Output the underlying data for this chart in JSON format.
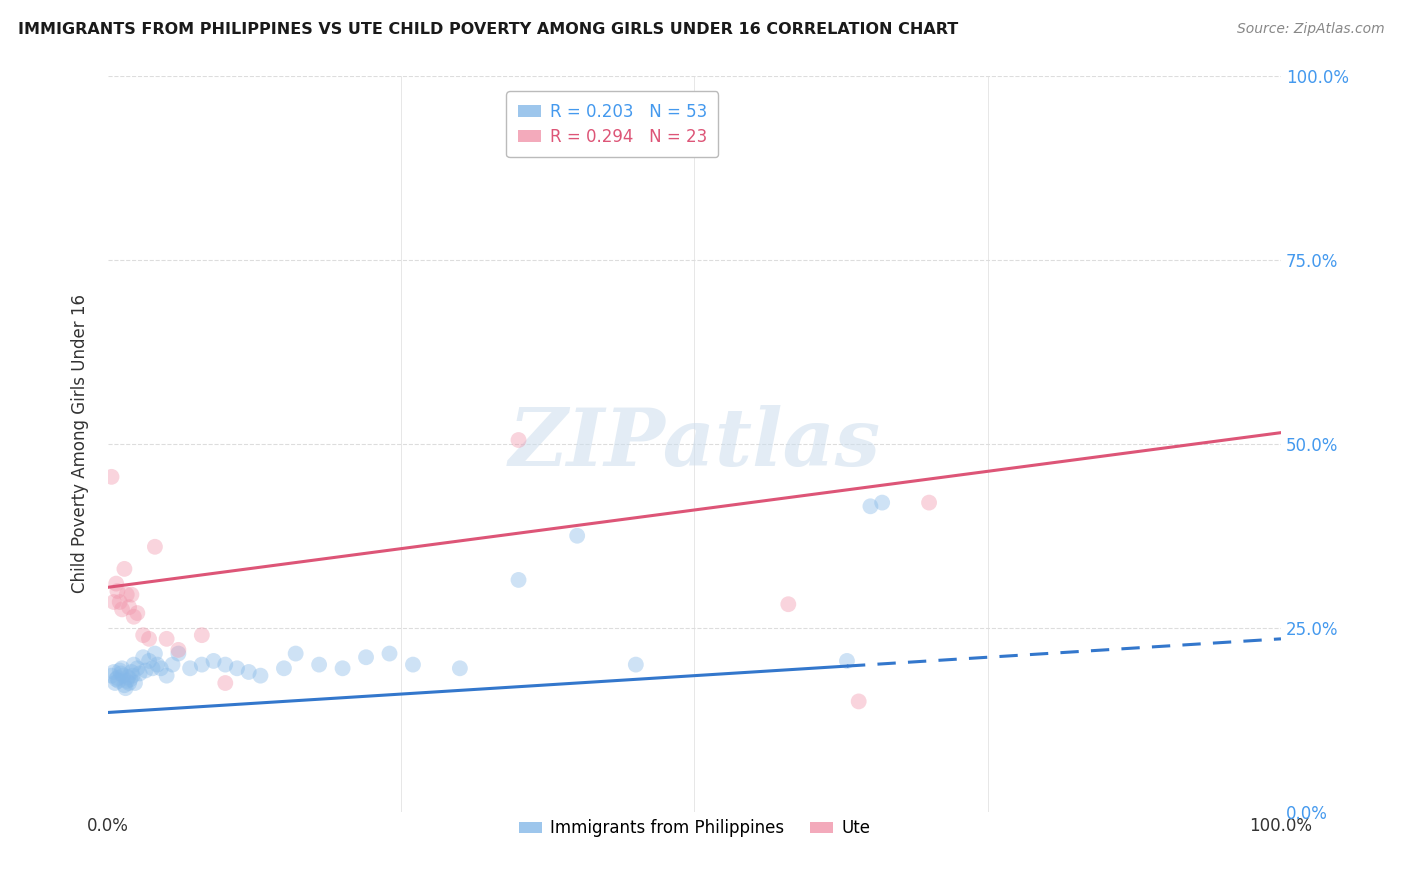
{
  "title": "IMMIGRANTS FROM PHILIPPINES VS UTE CHILD POVERTY AMONG GIRLS UNDER 16 CORRELATION CHART",
  "source": "Source: ZipAtlas.com",
  "ylabel": "Child Poverty Among Girls Under 16",
  "xlim": [
    0,
    1.0
  ],
  "ylim": [
    0,
    1.0
  ],
  "legend_entries": [
    {
      "label": "R = 0.203   N = 53",
      "color": "#a8c8f0"
    },
    {
      "label": "R = 0.294   N = 23",
      "color": "#f4a0b0"
    }
  ],
  "legend_labels_bottom": [
    "Immigrants from Philippines",
    "Ute"
  ],
  "blue_scatter_x": [
    0.003,
    0.005,
    0.006,
    0.007,
    0.008,
    0.009,
    0.01,
    0.011,
    0.012,
    0.013,
    0.014,
    0.015,
    0.016,
    0.017,
    0.018,
    0.019,
    0.02,
    0.021,
    0.022,
    0.023,
    0.025,
    0.027,
    0.03,
    0.032,
    0.035,
    0.038,
    0.04,
    0.042,
    0.045,
    0.05,
    0.055,
    0.06,
    0.07,
    0.08,
    0.09,
    0.1,
    0.11,
    0.12,
    0.13,
    0.15,
    0.16,
    0.18,
    0.2,
    0.22,
    0.24,
    0.26,
    0.3,
    0.35,
    0.4,
    0.45,
    0.63,
    0.65,
    0.66
  ],
  "blue_scatter_y": [
    0.185,
    0.19,
    0.175,
    0.18,
    0.182,
    0.178,
    0.192,
    0.188,
    0.195,
    0.185,
    0.172,
    0.168,
    0.178,
    0.183,
    0.175,
    0.18,
    0.19,
    0.185,
    0.2,
    0.175,
    0.195,
    0.188,
    0.21,
    0.192,
    0.205,
    0.195,
    0.215,
    0.2,
    0.195,
    0.185,
    0.2,
    0.215,
    0.195,
    0.2,
    0.205,
    0.2,
    0.195,
    0.19,
    0.185,
    0.195,
    0.215,
    0.2,
    0.195,
    0.21,
    0.215,
    0.2,
    0.195,
    0.315,
    0.375,
    0.2,
    0.205,
    0.415,
    0.42
  ],
  "pink_scatter_x": [
    0.003,
    0.005,
    0.007,
    0.008,
    0.01,
    0.012,
    0.014,
    0.016,
    0.018,
    0.02,
    0.022,
    0.025,
    0.03,
    0.035,
    0.04,
    0.05,
    0.06,
    0.08,
    0.1,
    0.35,
    0.58,
    0.64,
    0.7
  ],
  "pink_scatter_y": [
    0.455,
    0.285,
    0.31,
    0.3,
    0.285,
    0.275,
    0.33,
    0.295,
    0.278,
    0.295,
    0.265,
    0.27,
    0.24,
    0.235,
    0.36,
    0.235,
    0.22,
    0.24,
    0.175,
    0.505,
    0.282,
    0.15,
    0.42
  ],
  "blue_trend_x0": 0.0,
  "blue_trend_y0": 0.135,
  "blue_trend_x1": 1.0,
  "blue_trend_y1": 0.235,
  "blue_trend_dashed_start": 0.63,
  "pink_trend_x0": 0.0,
  "pink_trend_y0": 0.305,
  "pink_trend_x1": 1.0,
  "pink_trend_y1": 0.515,
  "scatter_size": 130,
  "scatter_alpha": 0.4,
  "blue_color": "#85b8e8",
  "pink_color": "#f095aa",
  "blue_line_color": "#3377cc",
  "pink_line_color": "#dd5577",
  "watermark_text": "ZIPatlas",
  "background_color": "#ffffff",
  "grid_color": "#dddddd",
  "right_tick_color": "#4499ee"
}
